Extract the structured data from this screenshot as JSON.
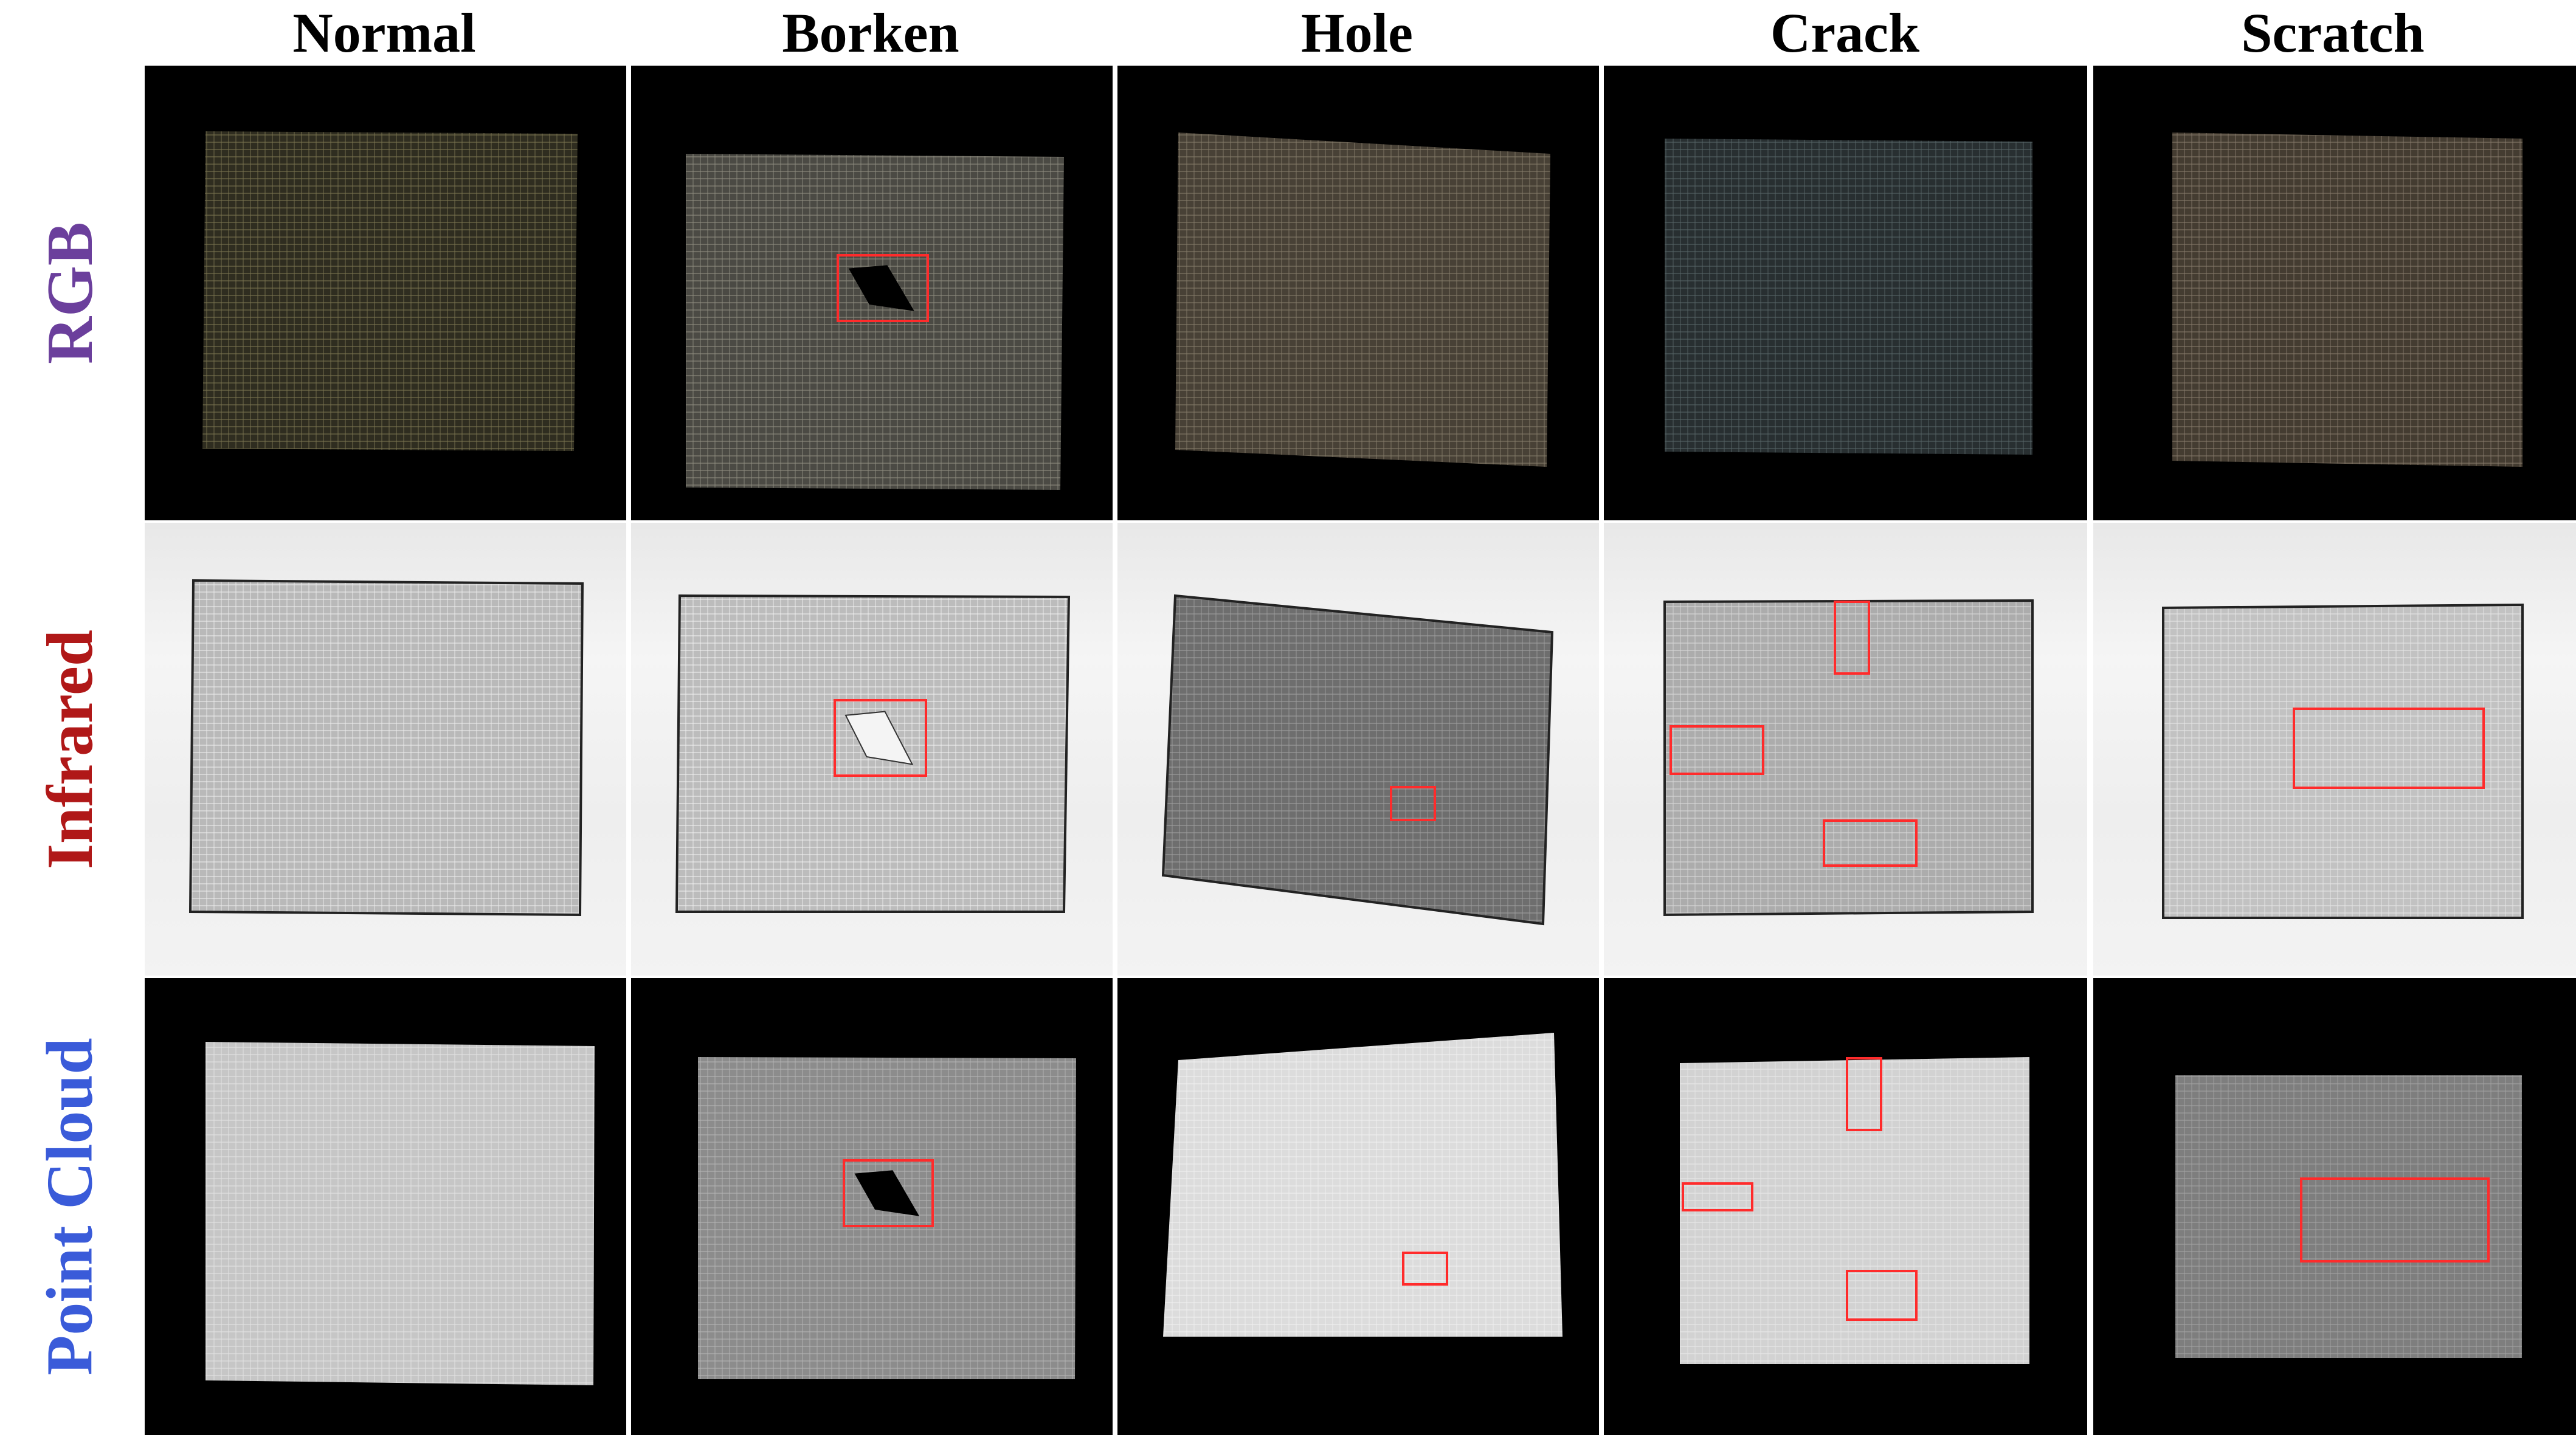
{
  "columns": [
    {
      "label": "Normal"
    },
    {
      "label": "Borken"
    },
    {
      "label": "Hole"
    },
    {
      "label": "Crack"
    },
    {
      "label": "Scratch"
    }
  ],
  "rows": [
    {
      "label": "RGB",
      "color": "#6b3f9c"
    },
    {
      "label": "Infrared",
      "color": "#b01818"
    },
    {
      "label": "Point Cloud",
      "color": "#3a5bd9"
    }
  ],
  "cells": [
    [
      {
        "fabric": "#2f2d20",
        "thread": "#7a7450",
        "bg": "dark",
        "boxes": 0
      },
      {
        "fabric": "#4b4a44",
        "thread": "#8f8d80",
        "bg": "dark",
        "boxes": 1,
        "defect": "hole"
      },
      {
        "fabric": "#484136",
        "thread": "#857c6a",
        "bg": "dark",
        "boxes": 0
      },
      {
        "fabric": "#282f31",
        "thread": "#566466",
        "bg": "dark",
        "boxes": 0
      },
      {
        "fabric": "#443c31",
        "thread": "#85796a",
        "bg": "dark",
        "boxes": 0
      }
    ],
    [
      {
        "fabric": "#b9b9b9",
        "thread": "#ececec",
        "bg": "light",
        "boxes": 0
      },
      {
        "fabric": "#bcbcbc",
        "thread": "#efefef",
        "bg": "light",
        "boxes": 1,
        "defect": "whitehole"
      },
      {
        "fabric": "#6e6e6e",
        "thread": "#9e9e9e",
        "bg": "light",
        "boxes": 1
      },
      {
        "fabric": "#acacac",
        "thread": "#d8d8d8",
        "bg": "light",
        "boxes": 3
      },
      {
        "fabric": "#c2c2c2",
        "thread": "#e6e6e6",
        "bg": "light",
        "boxes": 1
      }
    ],
    [
      {
        "fabric": "#c6c6c6",
        "thread": "#e4e4e4",
        "bg": "dark",
        "boxes": 0
      },
      {
        "fabric": "#8c8c8c",
        "thread": "#b4b4b4",
        "bg": "dark",
        "boxes": 1,
        "defect": "hole"
      },
      {
        "fabric": "#dcdcdc",
        "thread": "#f0f0f0",
        "bg": "dark",
        "boxes": 1
      },
      {
        "fabric": "#d2d2d2",
        "thread": "#e8e8e8",
        "bg": "dark",
        "boxes": 3
      },
      {
        "fabric": "#7e7e7e",
        "thread": "#a2a2a2",
        "bg": "dark",
        "boxes": 1
      }
    ]
  ]
}
